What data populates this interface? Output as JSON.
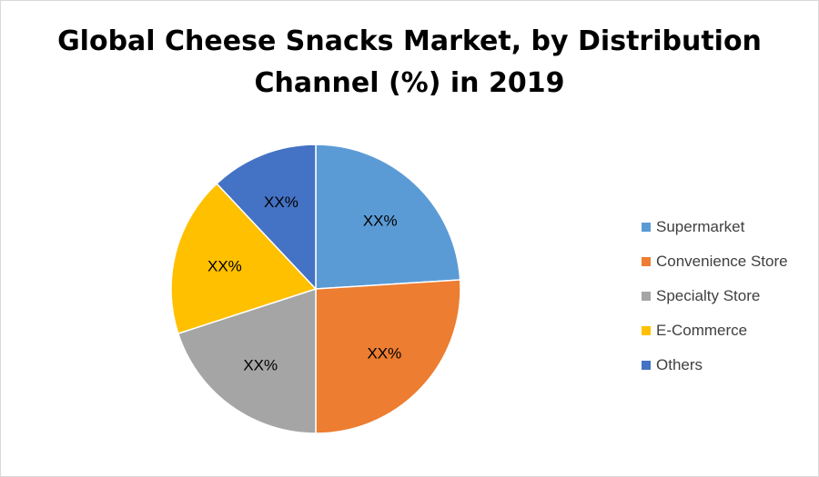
{
  "chart_data": {
    "type": "pie",
    "title": "Global Cheese Snacks Market, by Distribution Channel (%) in 2019",
    "title_lines": [
      "Global Cheese Snacks Market, by Distribution",
      "Channel (%) in 2019"
    ],
    "categories": [
      "Supermarket",
      "Convenience Store",
      "Specialty Store",
      "E-Commerce",
      "Others"
    ],
    "values": [
      24,
      26,
      20,
      18,
      12
    ],
    "data_labels": [
      "XX%",
      "XX%",
      "XX%",
      "XX%",
      "XX%"
    ],
    "colors": [
      "#5B9BD5",
      "#ED7D31",
      "#A5A5A5",
      "#FFC000",
      "#4472C4"
    ],
    "start": "12 o'clock, clockwise",
    "legend_position": "right"
  }
}
